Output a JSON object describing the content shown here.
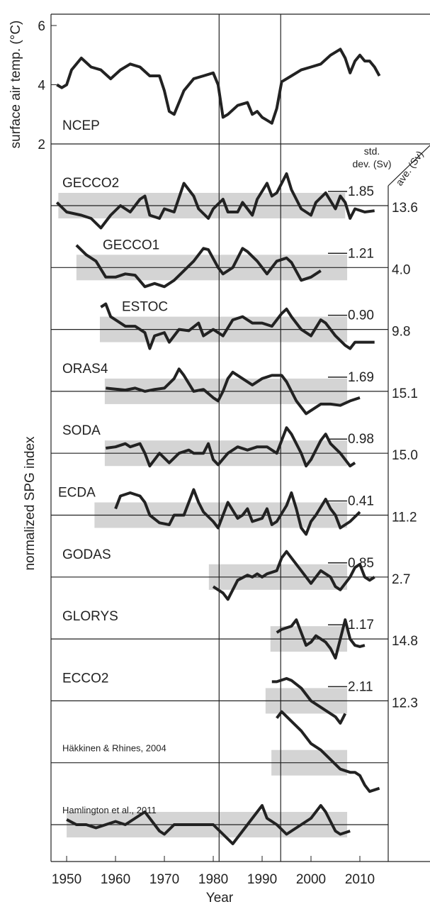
{
  "chart_data": [
    {
      "type": "line",
      "ylabel": "surface air temp. (°C)",
      "panel_label": "NCEP",
      "xlim": [
        1946.8,
        2015.8
      ],
      "ylim": [
        2,
        6
      ],
      "yticks": [
        2,
        4,
        6
      ],
      "series": [
        {
          "name": "NCEP",
          "color": "#222222",
          "x": [
            1948,
            1949,
            1950,
            1951,
            1953,
            1955,
            1957,
            1959,
            1961,
            1963,
            1965,
            1967,
            1969,
            1970,
            1971,
            1972,
            1974,
            1976,
            1978,
            1980,
            1981,
            1982,
            1983,
            1985,
            1987,
            1988,
            1989,
            1990,
            1991,
            1992,
            1993,
            1994,
            1996,
            1998,
            2000,
            2002,
            2004,
            2006,
            2007,
            2008,
            2009,
            2010,
            2011,
            2012,
            2013,
            2014
          ],
          "values": [
            4,
            3.9,
            4.0,
            4.5,
            4.9,
            4.6,
            4.5,
            4.2,
            4.5,
            4.7,
            4.6,
            4.3,
            4.3,
            3.8,
            3.1,
            3.0,
            3.8,
            4.2,
            4.3,
            4.4,
            4.0,
            2.9,
            3.0,
            3.3,
            3.4,
            3.0,
            3.1,
            2.9,
            2.8,
            2.7,
            3.2,
            4.1,
            4.3,
            4.5,
            4.6,
            4.7,
            5.0,
            5.2,
            4.9,
            4.4,
            4.8,
            5.0,
            4.8,
            4.8,
            4.6,
            4.3
          ]
        }
      ]
    },
    {
      "type": "offset-line",
      "ylabel": "normalized SPG index",
      "xlabel": "Year",
      "xlim": [
        1946.8,
        2015.8
      ],
      "xticks": [
        1950,
        1960,
        1970,
        1980,
        1990,
        2000,
        2010
      ],
      "vlines": [
        1981.2,
        1993.8
      ],
      "std_header": [
        "std.",
        "dev. (Sv)"
      ],
      "ave_header": "ave. (Sv)",
      "series": [
        {
          "name": "GECCO2",
          "color": "#222222",
          "std": 1.85,
          "std_label": "1.85",
          "ave": 13.6,
          "ave_label": "13.6",
          "band": [
            1948.3,
            2007
          ],
          "x": [
            1948,
            1950,
            1953,
            1955,
            1957,
            1959,
            1961,
            1963,
            1965,
            1966,
            1967,
            1969,
            1970,
            1972,
            1974,
            1976,
            1977,
            1979,
            1980,
            1982,
            1983,
            1985,
            1986,
            1988,
            1989,
            1991,
            1992,
            1993,
            1995,
            1996,
            1998,
            2000,
            2001,
            2003,
            2005,
            2006,
            2007,
            2008,
            2009,
            2011,
            2013
          ],
          "values": [
            0.5,
            -1,
            -1.5,
            -2,
            -3.5,
            -1.5,
            0,
            -1,
            1,
            1.5,
            -1.5,
            -2,
            -0.5,
            -1,
            3.5,
            1.5,
            -0.5,
            -2,
            -0.5,
            1,
            -1,
            -1,
            0.5,
            -1.5,
            1,
            3.5,
            1.5,
            2,
            5,
            2.5,
            -0.5,
            -1.5,
            0.5,
            2,
            -0.5,
            1.5,
            0.5,
            -2,
            -0.5,
            -1,
            -0.8
          ]
        },
        {
          "name": "GECCO1",
          "color": "#222222",
          "std": 1.21,
          "std_label": "1.21",
          "ave": 4.0,
          "ave_label": "4.0",
          "band": [
            1952,
            2007.4
          ],
          "x": [
            1952,
            1954,
            1956,
            1958,
            1960,
            1962,
            1964,
            1966,
            1968,
            1970,
            1972,
            1974,
            1976,
            1978,
            1979,
            1981,
            1982,
            1984,
            1986,
            1987,
            1989,
            1991,
            1993,
            1995,
            1996,
            1998,
            2000,
            2002
          ],
          "values": [
            3.5,
            2,
            1,
            -1.5,
            -1.5,
            -1,
            -1.2,
            -3,
            -2.5,
            -3,
            -2,
            -0.5,
            1,
            3,
            2.8,
            0,
            -1,
            0,
            3,
            2.5,
            1,
            -1,
            1,
            1.5,
            0.8,
            -2,
            -1.5,
            -0.5
          ]
        },
        {
          "name": "ESTOC",
          "color": "#222222",
          "std": 0.9,
          "std_label": "0.90",
          "ave": 9.8,
          "ave_label": "9.8",
          "band": [
            1956.8,
            2007.4
          ],
          "x": [
            1957,
            1958,
            1959,
            1960,
            1962,
            1964,
            1966,
            1967,
            1968,
            1970,
            1971,
            1973,
            1975,
            1977,
            1978,
            1980,
            1982,
            1984,
            1986,
            1988,
            1990,
            1992,
            1994,
            1995,
            1996,
            1998,
            2000,
            2002,
            2003,
            2005,
            2007,
            2008,
            2009,
            2011,
            2013
          ],
          "values": [
            3.5,
            4,
            2,
            1.5,
            0.5,
            0.5,
            -0.5,
            -3,
            -1,
            -0.5,
            -2,
            0,
            -0.2,
            1,
            -1,
            0,
            -1,
            1.5,
            2,
            1,
            1,
            0.5,
            2.5,
            3.2,
            2,
            0,
            -1,
            1.5,
            1,
            -1,
            -2.5,
            -3,
            -2,
            -2,
            -2
          ]
        },
        {
          "name": "ORAS4",
          "color": "#222222",
          "std": 1.69,
          "std_label": "1.69",
          "ave": 15.1,
          "ave_label": "15.1",
          "band": [
            1957.8,
            2007.4
          ],
          "x": [
            1958,
            1962,
            1964,
            1966,
            1968,
            1970,
            1972,
            1973,
            1974,
            1976,
            1978,
            1980,
            1981,
            1982,
            1983,
            1984,
            1986,
            1988,
            1990,
            1992,
            1994,
            1995,
            1997,
            1999,
            2000,
            2002,
            2004,
            2006,
            2008,
            2010
          ],
          "values": [
            0.5,
            0.2,
            0.5,
            0,
            0.3,
            0.5,
            2,
            3.5,
            2.5,
            0,
            0.3,
            -1,
            -1.5,
            0,
            2,
            3,
            2,
            1,
            2,
            2.5,
            2.5,
            1.5,
            -1.5,
            -3.5,
            -3,
            -2,
            -2,
            -2.2,
            -1.5,
            -1
          ]
        },
        {
          "name": "SODA",
          "color": "#222222",
          "std": 0.98,
          "std_label": "0.98",
          "ave": 15.0,
          "ave_label": "15.0",
          "band": [
            1957.8,
            2007.4
          ],
          "x": [
            1958,
            1960,
            1962,
            1963,
            1965,
            1966,
            1967,
            1969,
            1971,
            1973,
            1975,
            1976,
            1978,
            1979,
            1980,
            1981,
            1983,
            1985,
            1987,
            1989,
            1991,
            1993,
            1994,
            1995,
            1996,
            1998,
            1999,
            2000,
            2002,
            2003,
            2004,
            2006,
            2007,
            2008,
            2009
          ],
          "values": [
            0.8,
            1,
            1.5,
            1,
            1.5,
            0,
            -2,
            0,
            -1.5,
            0,
            0.5,
            0,
            0,
            1.5,
            -1,
            -1.8,
            0,
            1,
            0.5,
            1,
            1,
            0,
            2,
            4,
            3,
            0,
            -2,
            -1,
            2,
            3,
            1.5,
            0,
            -1,
            -2,
            -1.5
          ]
        },
        {
          "name": "ECDA",
          "color": "#222222",
          "std": 0.41,
          "std_label": "0.41",
          "ave": 11.2,
          "ave_label": "11.2",
          "band": [
            1955.7,
            2007.4
          ],
          "x": [
            1960,
            1961,
            1963,
            1965,
            1966,
            1967,
            1969,
            1971,
            1972,
            1974,
            1975,
            1976,
            1977,
            1978,
            1980,
            1981,
            1982,
            1983,
            1985,
            1986,
            1987,
            1988,
            1990,
            1991,
            1992,
            1993,
            1995,
            1996,
            1997,
            1998,
            1999,
            2000,
            2001,
            2003,
            2004,
            2005,
            2006,
            2008,
            2010
          ],
          "values": [
            1,
            3,
            3.5,
            3,
            2,
            0,
            -1.2,
            -1.5,
            0,
            0,
            2,
            4,
            2,
            0.5,
            -1,
            -2,
            0,
            2,
            -0.5,
            0,
            1,
            -1,
            -0.5,
            1,
            -1.5,
            -1,
            1.5,
            3.5,
            1,
            -2,
            -3,
            -1,
            0,
            2.5,
            1,
            0,
            -2,
            -1,
            0.5
          ]
        },
        {
          "name": "GODAS",
          "color": "#222222",
          "std": 0.85,
          "std_label": "0.85",
          "ave": 2.7,
          "ave_label": "2.7",
          "band": [
            1979.1,
            2007.4
          ],
          "x": [
            1980,
            1982,
            1983,
            1984,
            1985,
            1987,
            1988,
            1989,
            1990,
            1991,
            1993,
            1994,
            1995,
            1996,
            1998,
            2000,
            2001,
            2002,
            2004,
            2005,
            2006,
            2008,
            2009,
            2010,
            2011,
            2012,
            2013
          ],
          "values": [
            -1.5,
            -2.5,
            -3.5,
            -2,
            -0.5,
            0.3,
            0,
            0.5,
            0,
            0.5,
            1,
            3,
            4,
            3,
            1,
            -1,
            0,
            1,
            0,
            -1.5,
            -2,
            0,
            1.5,
            2,
            0,
            -0.5,
            0
          ]
        },
        {
          "name": "GLORYS",
          "color": "#222222",
          "std": 1.17,
          "std_label": "1.17",
          "ave": 14.8,
          "ave_label": "14.8",
          "band": [
            1991.7,
            2007.4
          ],
          "x": [
            1993,
            1994,
            1996,
            1997,
            1998,
            1999,
            2000,
            2001,
            2003,
            2004,
            2005,
            2006,
            2007,
            2008,
            2009,
            2010,
            2011
          ],
          "values": [
            1,
            1.5,
            2,
            3,
            1,
            -1,
            -0.5,
            0.5,
            -0.5,
            -1.5,
            -3,
            0,
            3,
            0,
            -1,
            -1.2,
            -1
          ]
        },
        {
          "name": "ECCO2",
          "color": "#222222",
          "std": 2.11,
          "std_label": "2.11",
          "ave": 12.3,
          "ave_label": "12.3",
          "band": [
            1990.7,
            2007.4
          ],
          "x": [
            1992,
            1993,
            1995,
            1996,
            1998,
            2000,
            2002,
            2004,
            2005,
            2006,
            2007
          ],
          "values": [
            3,
            3,
            3.5,
            3.2,
            2,
            0,
            -1,
            -2,
            -2.5,
            -3.5,
            -2
          ]
        },
        {
          "name": "Häkkinen & Rhines, 2004",
          "color": "#222222",
          "band": [
            1991.9,
            2007.4
          ],
          "x": [
            1993,
            1994,
            1996,
            1998,
            2000,
            2002,
            2004,
            2006,
            2008,
            2009,
            2010,
            2011,
            2012,
            2014
          ],
          "values": [
            7,
            8,
            6.5,
            5,
            3,
            2,
            0.5,
            -1,
            -1.5,
            -1.5,
            -2,
            -3.5,
            -4.5,
            -4
          ]
        },
        {
          "name": "Hamlington et al., 2011",
          "color": "#222222",
          "band": [
            1950,
            2007.4
          ],
          "x": [
            1950,
            1952,
            1954,
            1956,
            1958,
            1960,
            1962,
            1964,
            1966,
            1967,
            1969,
            1970,
            1972,
            1974,
            1976,
            1978,
            1980,
            1982,
            1984,
            1986,
            1988,
            1990,
            1991,
            1993,
            1995,
            1996,
            1998,
            2000,
            2002,
            2003,
            2005,
            2006,
            2008
          ],
          "values": [
            0.8,
            0,
            0,
            -0.5,
            0,
            0.5,
            0,
            1,
            2,
            1,
            -1,
            -1.5,
            0,
            0,
            0,
            0,
            0,
            -1.5,
            -3,
            -1,
            1,
            3,
            1,
            0,
            -1.5,
            -1,
            0,
            1,
            3,
            2,
            -1,
            -1.5,
            -1
          ]
        }
      ]
    }
  ]
}
